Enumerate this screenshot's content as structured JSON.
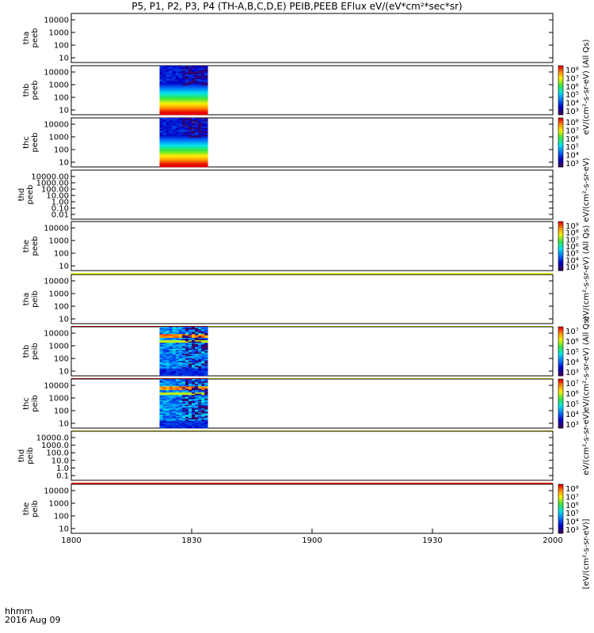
{
  "title": "P5, P1, P2, P3, P4 (TH-A,B,C,D,E) PEIB,PEEB EFlux eV/(eV*cm²*sec*sr)",
  "footer": {
    "time_label": "hhmm",
    "date_label": "2016 Aug 09"
  },
  "colors": {
    "red_bar": "#ff0000",
    "yellow_bar": "#ffff00",
    "frame": "#000000"
  },
  "chart_data": {
    "type": "heatmap",
    "xlabel": "",
    "x_ticks": [
      "1800",
      "1830",
      "1900",
      "1930",
      "2000"
    ],
    "xlim_hhmm": [
      "1800",
      "2000"
    ],
    "panels": [
      {
        "id": "tha_peeb",
        "ylabel": [
          "tha",
          "peeb"
        ],
        "yticks": [
          "10000",
          "1000",
          "100",
          "10"
        ],
        "has_data": false,
        "colorbar": null
      },
      {
        "id": "thb_peeb",
        "ylabel": [
          "thb",
          "peeb"
        ],
        "yticks": [
          "10000",
          "1000",
          "100",
          "10"
        ],
        "has_data": true,
        "data_start": "1822",
        "data_end": "1834",
        "pattern": "electron",
        "colorbar": [
          "10⁸",
          "10⁷",
          "10⁶",
          "10⁵",
          "10⁴",
          "10³"
        ]
      },
      {
        "id": "thc_peeb",
        "ylabel": [
          "thc",
          "peeb"
        ],
        "yticks": [
          "10000",
          "1000",
          "100",
          "10"
        ],
        "has_data": true,
        "data_start": "1822",
        "data_end": "1834",
        "pattern": "electron",
        "colorbar": [
          "10⁸",
          "10⁷",
          "10⁶",
          "10⁵",
          "10⁴",
          "10³"
        ]
      },
      {
        "id": "thd_peeb",
        "ylabel": [
          "thd",
          "peeb"
        ],
        "yticks": [
          "10000.00",
          "1000.00",
          "100.00",
          "10.00",
          "1.00",
          "0.10",
          "0.01"
        ],
        "has_data": false,
        "colorbar": null
      },
      {
        "id": "the_peeb",
        "ylabel": [
          "the",
          "peeb"
        ],
        "yticks": [
          "10000",
          "1000",
          "100",
          "10"
        ],
        "has_data": false,
        "colorbar": [
          "10⁹",
          "10⁸",
          "10⁷",
          "10⁶",
          "10⁵",
          "10⁴",
          "10³"
        ],
        "flag_bar": [
          {
            "color": "yellow",
            "from": "1800",
            "to": "2000"
          }
        ]
      },
      {
        "id": "tha_peib",
        "ylabel": [
          "tha",
          "peib"
        ],
        "yticks": [
          "10000",
          "1000",
          "100",
          "10"
        ],
        "has_data": false,
        "colorbar": null,
        "flag_bar": [
          {
            "color": "red",
            "from": "1800",
            "to": "1834"
          },
          {
            "color": "yellow",
            "from": "1834",
            "to": "2000"
          }
        ]
      },
      {
        "id": "thb_peib",
        "ylabel": [
          "thb",
          "peib"
        ],
        "yticks": [
          "10000",
          "1000",
          "100",
          "10"
        ],
        "has_data": true,
        "data_start": "1822",
        "data_end": "1834",
        "pattern": "ion",
        "colorbar": [
          "10⁷",
          "10⁶",
          "10⁵",
          "10⁴",
          "10³"
        ],
        "flag_bar": [
          {
            "color": "red",
            "from": "1800",
            "to": "1834"
          },
          {
            "color": "yellow",
            "from": "1834",
            "to": "2000"
          }
        ]
      },
      {
        "id": "thc_peib",
        "ylabel": [
          "thc",
          "peib"
        ],
        "yticks": [
          "10000",
          "1000",
          "100",
          "10"
        ],
        "has_data": true,
        "data_start": "1822",
        "data_end": "1834",
        "pattern": "ion",
        "colorbar": [
          "10⁷",
          "10⁶",
          "10⁵",
          "10⁴",
          "10³"
        ],
        "flag_bar": [
          {
            "color": "yellow",
            "from": "1800",
            "to": "2000"
          }
        ]
      },
      {
        "id": "thd_peib",
        "ylabel": [
          "thd",
          "peib"
        ],
        "yticks": [
          "10000.0",
          "1000.0",
          "100.0",
          "10.0",
          "1.0",
          "0.1"
        ],
        "has_data": false,
        "colorbar": null,
        "flag_bar": [
          {
            "color": "red",
            "from": "1800",
            "to": "2000"
          }
        ]
      },
      {
        "id": "the_peib",
        "ylabel": [
          "the",
          "peib"
        ],
        "yticks": [
          "10000",
          "1000",
          "100",
          "10"
        ],
        "has_data": false,
        "colorbar": [
          "10⁸",
          "10⁷",
          "10⁶",
          "10⁵",
          "10⁴",
          "10³"
        ]
      }
    ],
    "colorbar_units": [
      "eV/(cm²-s-sr-eV) (All Qs)",
      "eV/(cm²-s-sr-eV)",
      "eV/(cm²-s-sr-eV) (All Qs)",
      "eV/(cm²-s-sr-eV) (All Qs)",
      "eV/(cm²-s-sr-eV)",
      "[eV/(cm²-s-sr-eV)]"
    ]
  }
}
